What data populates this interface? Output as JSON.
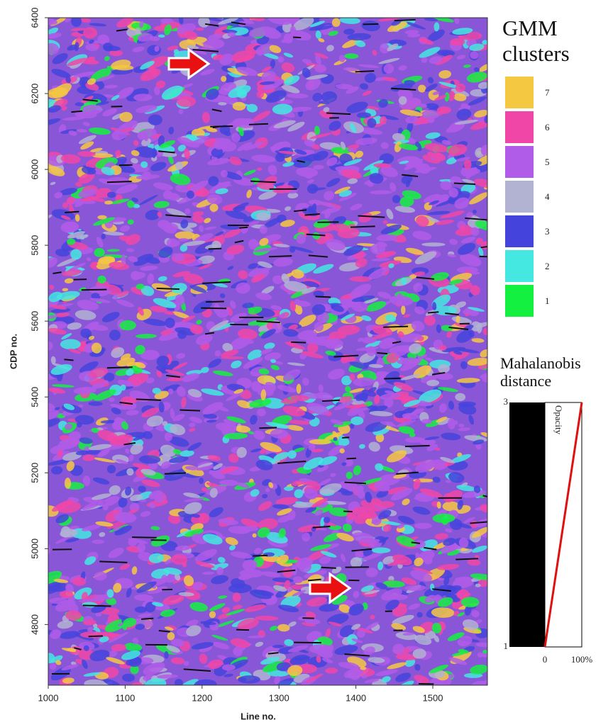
{
  "chart_data": {
    "type": "image",
    "xlabel": "Line no.",
    "ylabel": "CDP no.",
    "xlim": [
      1000,
      1571
    ],
    "xticks": [
      1000,
      1100,
      1200,
      1300,
      1400,
      1500
    ],
    "ylim": [
      4640,
      6400
    ],
    "yticks": [
      4800,
      5000,
      5200,
      5400,
      5600,
      5800,
      6000,
      6200,
      6400
    ],
    "legend": {
      "title": "GMM clusters",
      "series": [
        {
          "name": "7",
          "color": "#f5c842"
        },
        {
          "name": "6",
          "color": "#f046a8"
        },
        {
          "name": "5",
          "color": "#b05ce8"
        },
        {
          "name": "4",
          "color": "#b2b2d2"
        },
        {
          "name": "3",
          "color": "#4444dc"
        },
        {
          "name": "2",
          "color": "#44e8e0"
        },
        {
          "name": "1",
          "color": "#14f040"
        }
      ]
    },
    "colorbar": {
      "title": "Mahalanobis distance",
      "lim": [
        1,
        3
      ],
      "ticks": [
        1,
        3
      ],
      "opacity_label": "Opacity",
      "opacity_lim": [
        0,
        100
      ],
      "opacity_ticks": [
        0,
        {
          "value": 100,
          "label": "100%"
        }
      ]
    }
  }
}
